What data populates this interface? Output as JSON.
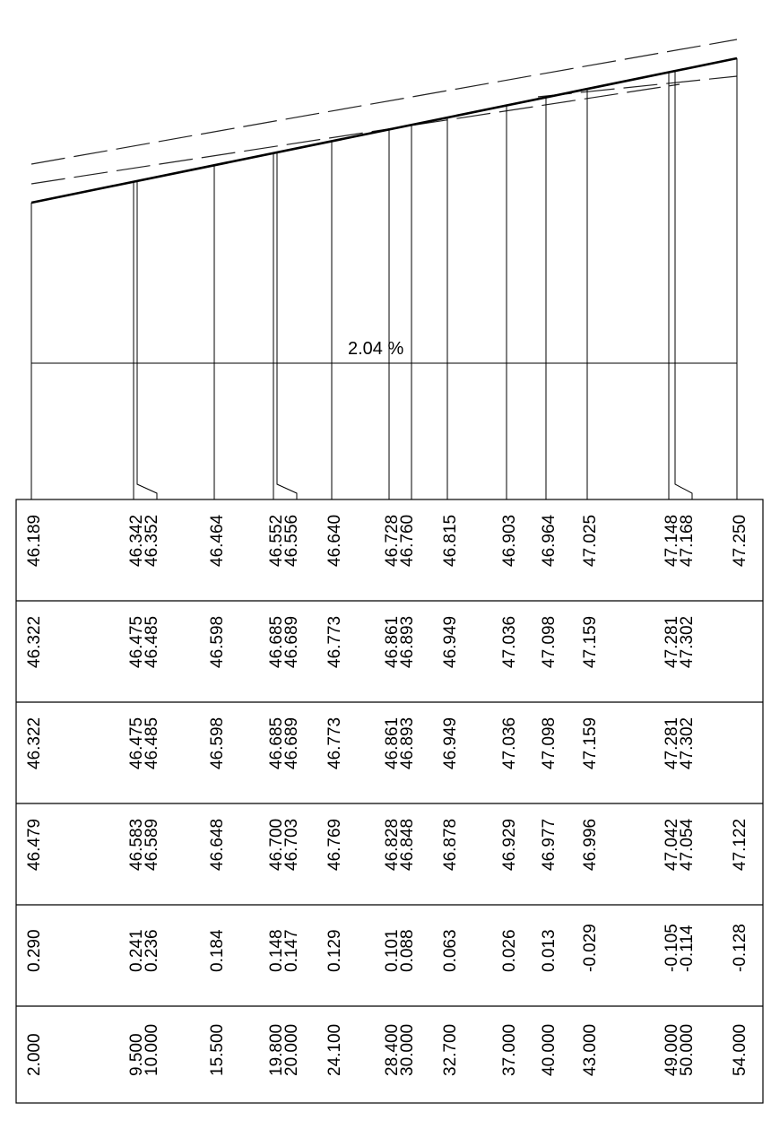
{
  "grade_label": "2.04 %",
  "table": {
    "rows": [
      {
        "key": "elev_a",
        "values": [
          "46.189",
          "46.342",
          "46.352",
          "46.464",
          "46.552",
          "46.556",
          "46.640",
          "46.728",
          "46.760",
          "46.815",
          "46.903",
          "46.964",
          "47.025",
          "47.148",
          "47.168",
          "47.250"
        ]
      },
      {
        "key": "elev_b",
        "values": [
          "46.322",
          "46.475",
          "46.485",
          "46.598",
          "46.685",
          "46.689",
          "46.773",
          "46.861",
          "46.893",
          "46.949",
          "47.036",
          "47.098",
          "47.159",
          "47.281",
          "47.302",
          ""
        ]
      },
      {
        "key": "elev_c",
        "values": [
          "46.322",
          "46.475",
          "46.485",
          "46.598",
          "46.685",
          "46.689",
          "46.773",
          "46.861",
          "46.893",
          "46.949",
          "47.036",
          "47.098",
          "47.159",
          "47.281",
          "47.302",
          ""
        ]
      },
      {
        "key": "elev_d",
        "values": [
          "46.479",
          "46.583",
          "46.589",
          "46.648",
          "46.700",
          "46.703",
          "46.769",
          "46.828",
          "46.848",
          "46.878",
          "46.929",
          "46.977",
          "46.996",
          "47.042",
          "47.054",
          "47.122"
        ]
      },
      {
        "key": "difference",
        "values": [
          "0.290",
          "0.241",
          "0.236",
          "0.184",
          "0.148",
          "0.147",
          "0.129",
          "0.101",
          "0.088",
          "0.063",
          "0.026",
          "0.013",
          "-0.029",
          "-0.105",
          "-0.114",
          "-0.128"
        ]
      },
      {
        "key": "station",
        "values": [
          "2.000",
          "9.500",
          "10.000",
          "15.500",
          "19.800",
          "20.000",
          "24.100",
          "28.400",
          "30.000",
          "32.700",
          "37.000",
          "40.000",
          "43.000",
          "49.000",
          "50.000",
          "54.000"
        ]
      }
    ]
  }
}
